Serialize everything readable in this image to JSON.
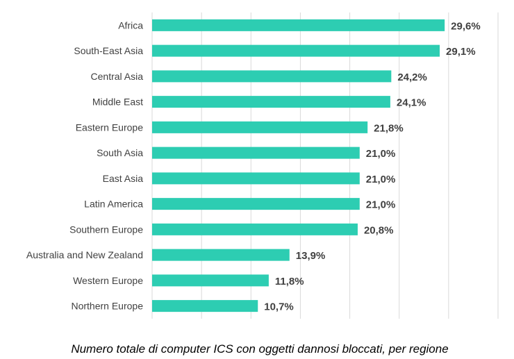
{
  "chart_data": {
    "type": "bar",
    "orientation": "horizontal",
    "categories": [
      "Africa",
      "South-East Asia",
      "Central Asia",
      "Middle East",
      "Eastern Europe",
      "South Asia",
      "East Asia",
      "Latin America",
      "Southern Europe",
      "Australia and New Zealand",
      "Western Europe",
      "Northern Europe"
    ],
    "values": [
      29.6,
      29.1,
      24.2,
      24.1,
      21.8,
      21.0,
      21.0,
      21.0,
      20.8,
      13.9,
      11.8,
      10.7
    ],
    "value_labels": [
      "29,6%",
      "29,1%",
      "24,2%",
      "24,1%",
      "21,8%",
      "21,0%",
      "21,0%",
      "21,0%",
      "20,8%",
      "13,9%",
      "11,8%",
      "10,7%"
    ],
    "title": "",
    "xlabel": "",
    "ylabel": "",
    "xlim": [
      0,
      35
    ],
    "grid": "vertical",
    "legend": "none",
    "bar_color": "#2dcdb2",
    "caption": "Numero totale di computer ICS con oggetti dannosi bloccati, per regione"
  }
}
